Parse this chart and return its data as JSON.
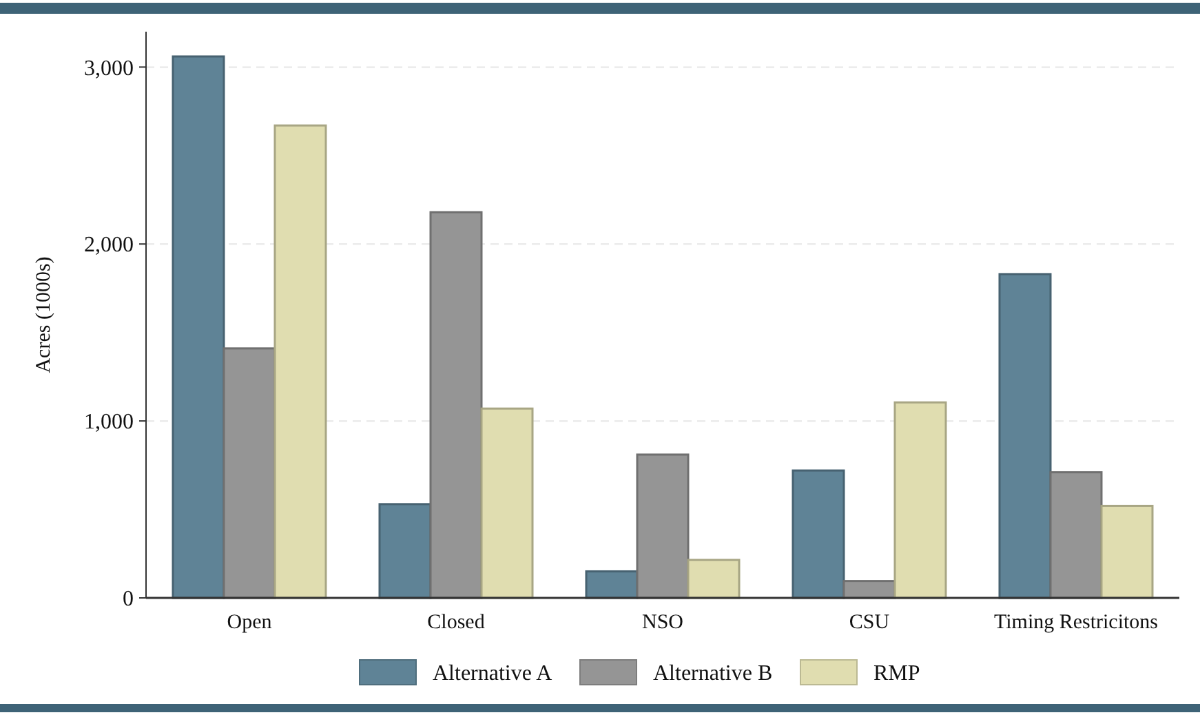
{
  "chart_data": {
    "type": "bar",
    "ylabel": "Acres (1000s)",
    "categories": [
      "Open",
      "Closed",
      "NSO",
      "CSU",
      "Timing Restricitons"
    ],
    "series": [
      {
        "name": "Alternative A",
        "color": "#5f8396",
        "values": [
          3060,
          530,
          150,
          720,
          1830
        ]
      },
      {
        "name": "Alternative B",
        "color": "#959595",
        "values": [
          1410,
          2180,
          810,
          95,
          710
        ]
      },
      {
        "name": "RMP",
        "color": "#e0ddb0",
        "values": [
          2670,
          1070,
          215,
          1105,
          520
        ]
      }
    ],
    "ylim": [
      0,
      3200
    ],
    "yticks": [
      {
        "value": 0,
        "label": "0"
      },
      {
        "value": 1000,
        "label": "1,000"
      },
      {
        "value": 2000,
        "label": "2,000"
      },
      {
        "value": 3000,
        "label": "3,000"
      }
    ],
    "grid": "y",
    "legend": "bottom"
  }
}
